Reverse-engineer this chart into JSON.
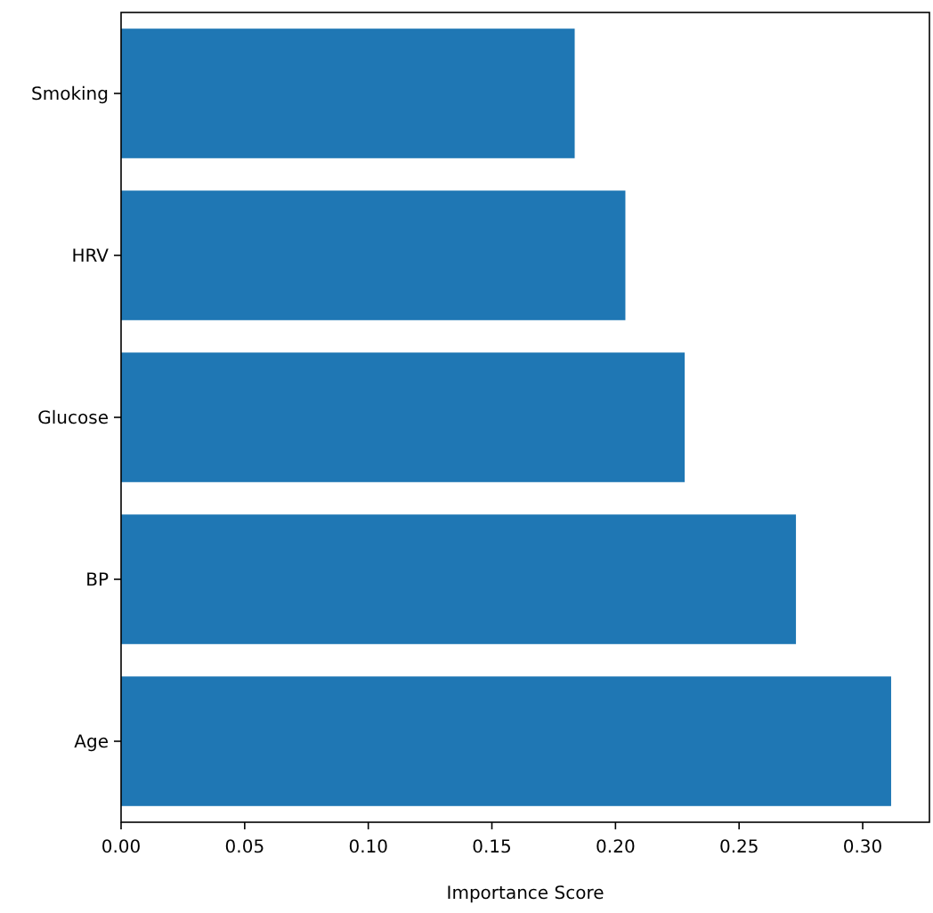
{
  "chart_data": {
    "type": "bar",
    "orientation": "horizontal",
    "categories": [
      "Smoking",
      "HRV",
      "Glucose",
      "BP",
      "Age"
    ],
    "values": [
      0.1835,
      0.204,
      0.228,
      0.273,
      0.3115
    ],
    "color": "#1f77b4",
    "xlim": [
      0,
      0.327
    ],
    "xticks": [
      {
        "value": 0,
        "label": "0.00"
      },
      {
        "value": 0.05,
        "label": "0.05"
      },
      {
        "value": 0.1,
        "label": "0.10"
      },
      {
        "value": 0.15,
        "label": "0.15"
      },
      {
        "value": 0.2,
        "label": "0.20"
      },
      {
        "value": 0.25,
        "label": "0.25"
      },
      {
        "value": 0.3,
        "label": "0.30"
      }
    ],
    "xlabel": "Importance Score",
    "grid": false
  }
}
